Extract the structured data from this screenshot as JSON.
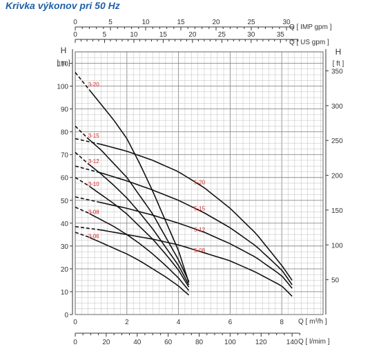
{
  "page_title": "Krivka výkonov pri 50 Hz",
  "colors": {
    "grid": "#bdbdbd",
    "curve": "#111111",
    "label": "#d42020",
    "title": "#1f5fa8",
    "axis": "#333333"
  },
  "chart_data": {
    "type": "line",
    "title": "Krivka výkonov pri 50 Hz",
    "axes": {
      "top_imp": {
        "label": "Q [ IMP gpm ]",
        "ticks": [
          0,
          5,
          10,
          15,
          20,
          25,
          30
        ]
      },
      "top_us": {
        "label": "Q [ US gpm ]",
        "ticks": [
          0,
          5,
          10,
          15,
          20,
          25,
          30,
          35
        ]
      },
      "bottom_m3h": {
        "label": "Q [ m³/h ]",
        "ticks": [
          0,
          2,
          4,
          6,
          8
        ],
        "range": [
          0,
          9.6
        ]
      },
      "bottom_lmin": {
        "label": "Q [ l/mim ]",
        "ticks": [
          0,
          20,
          40,
          60,
          80,
          100,
          120,
          140
        ]
      },
      "left": {
        "label_top": "H",
        "label_unit": "[ m ]",
        "ticks": [
          0,
          10,
          20,
          30,
          40,
          50,
          60,
          70,
          80,
          90,
          100,
          110
        ],
        "range": [
          0,
          115
        ]
      },
      "right": {
        "label_top": "H",
        "label_unit": "[ ft ]",
        "ticks": [
          50,
          100,
          150,
          200,
          250,
          300,
          350
        ]
      }
    },
    "grid": true,
    "series": [
      {
        "name": "3-20",
        "x": [
          0.0,
          0.5,
          1.0,
          1.5,
          2.0,
          2.5,
          3.0,
          3.5,
          4.0,
          4.4
        ],
        "y": [
          106.0,
          99.0,
          92.0,
          85.0,
          77.0,
          66.0,
          54.0,
          41.0,
          28.0,
          14.0
        ]
      },
      {
        "name": "3-15",
        "x": [
          0.0,
          0.5,
          1.0,
          1.5,
          2.0,
          2.5,
          3.0,
          3.5,
          4.0,
          4.4
        ],
        "y": [
          82.5,
          77.0,
          72.0,
          66.0,
          60.0,
          52.0,
          44.0,
          34.0,
          24.0,
          14.5
        ]
      },
      {
        "name": "3-12",
        "x": [
          0.0,
          0.5,
          1.0,
          1.5,
          2.0,
          2.5,
          3.0,
          3.5,
          4.0,
          4.4
        ],
        "y": [
          71.0,
          66.0,
          61.5,
          56.5,
          51.0,
          44.5,
          37.5,
          29.5,
          21.5,
          13.0
        ]
      },
      {
        "name": "3-10",
        "x": [
          0.0,
          0.5,
          1.0,
          1.5,
          2.0,
          2.5,
          3.0,
          3.5,
          4.0,
          4.4
        ],
        "y": [
          60.0,
          56.5,
          52.5,
          48.5,
          44.0,
          38.5,
          33.0,
          26.5,
          19.5,
          12.0
        ]
      },
      {
        "name": "3-08",
        "x": [
          0.0,
          0.5,
          1.0,
          1.5,
          2.0,
          2.5,
          3.0,
          3.5,
          4.0,
          4.4
        ],
        "y": [
          47.0,
          44.5,
          41.5,
          38.5,
          35.0,
          31.0,
          26.5,
          21.5,
          16.0,
          10.5
        ]
      },
      {
        "name": "3-06",
        "x": [
          0.0,
          0.5,
          1.0,
          1.5,
          2.0,
          2.5,
          3.0,
          3.5,
          4.0,
          4.4
        ],
        "y": [
          36.0,
          34.0,
          31.5,
          29.0,
          26.5,
          23.5,
          20.0,
          16.5,
          12.5,
          8.5
        ]
      },
      {
        "name": "5-20",
        "x": [
          0.0,
          1.0,
          2.0,
          3.0,
          4.0,
          5.0,
          6.0,
          7.0,
          8.0,
          8.4
        ],
        "y": [
          77.0,
          74.5,
          71.5,
          67.5,
          62.5,
          55.5,
          46.5,
          35.5,
          21.5,
          15.0
        ]
      },
      {
        "name": "5-15",
        "x": [
          0.0,
          1.0,
          2.0,
          3.0,
          4.0,
          5.0,
          6.0,
          7.0,
          8.0,
          8.4
        ],
        "y": [
          65.0,
          62.0,
          58.5,
          54.5,
          50.0,
          44.5,
          38.0,
          30.0,
          19.5,
          13.0
        ]
      },
      {
        "name": "5-12",
        "x": [
          0.0,
          1.0,
          2.0,
          3.0,
          4.0,
          5.0,
          6.0,
          7.0,
          8.0,
          8.4
        ],
        "y": [
          51.5,
          49.0,
          46.5,
          43.5,
          40.0,
          36.0,
          31.0,
          25.0,
          17.0,
          11.5
        ]
      },
      {
        "name": "5-08",
        "x": [
          0.0,
          1.0,
          2.0,
          3.0,
          4.0,
          5.0,
          6.0,
          7.0,
          8.0,
          8.4
        ],
        "y": [
          38.5,
          37.0,
          35.0,
          33.0,
          30.5,
          27.0,
          23.5,
          18.5,
          12.5,
          8.0
        ]
      }
    ],
    "dashed_until_x": 1.0,
    "legend": "inline curve labels"
  }
}
